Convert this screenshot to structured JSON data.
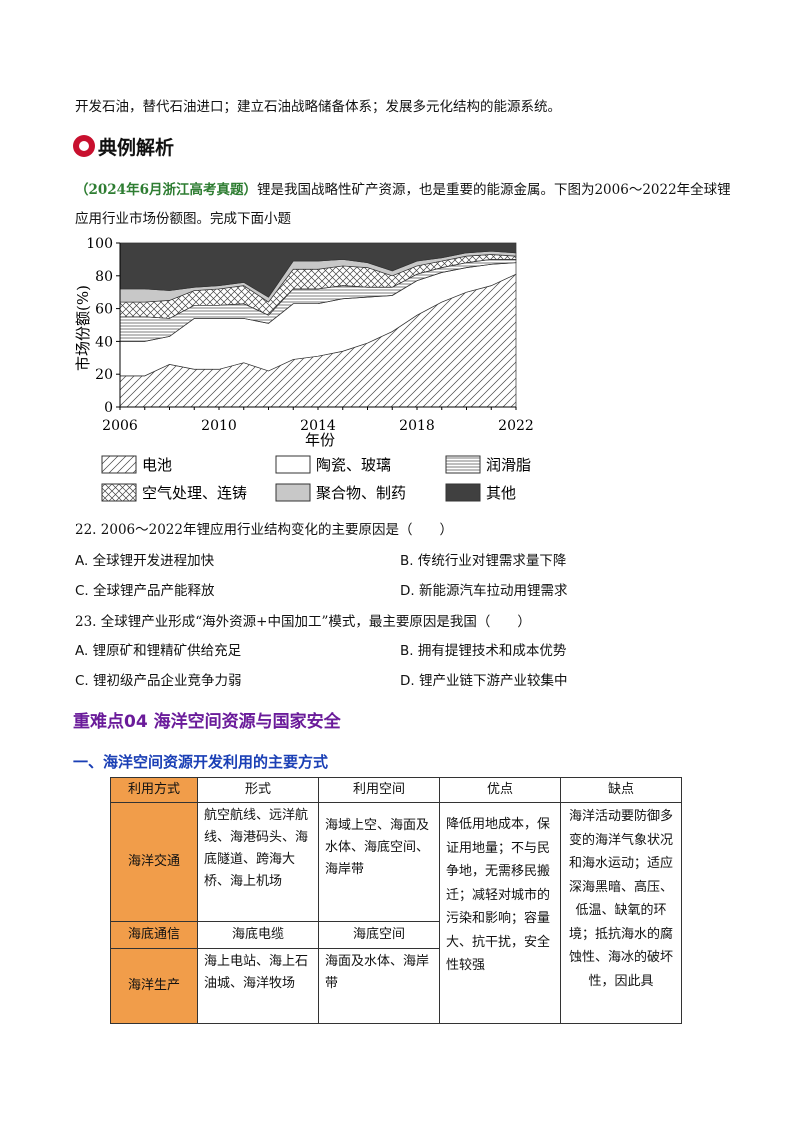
{
  "intro_text": "开发石油，替代石油进口；建立石油战略储备体系；发展多元化结构的能源系统。",
  "section_heading": "典例解析",
  "question": {
    "source": "（2024年6月浙江高考真题）",
    "text": "锂是我国战略性矿产资源，也是重要的能源金属。下图为2006～2022年全球锂应用行业市场份额图。完成下面小题"
  },
  "chart_data": {
    "type": "area",
    "title": "",
    "xlabel": "年份",
    "ylabel": "市场份额(%)",
    "x": [
      2006,
      2007,
      2008,
      2009,
      2010,
      2011,
      2012,
      2013,
      2014,
      2015,
      2016,
      2017,
      2018,
      2019,
      2020,
      2021,
      2022
    ],
    "xticks": [
      2006,
      2010,
      2014,
      2018,
      2022
    ],
    "yticks": [
      0,
      20,
      40,
      60,
      80,
      100
    ],
    "xlim": [
      2006,
      2022
    ],
    "ylim": [
      0,
      100
    ],
    "series": [
      {
        "name": "电池",
        "values": [
          19,
          19,
          26,
          23,
          23,
          27,
          22,
          29,
          31,
          34,
          39,
          46,
          56,
          64,
          70,
          74,
          81
        ]
      },
      {
        "name": "陶瓷、玻璃",
        "values": [
          21,
          21,
          17,
          31,
          31,
          27,
          29,
          34,
          32,
          32,
          28,
          22,
          21,
          18,
          15,
          13,
          7
        ]
      },
      {
        "name": "润滑脂",
        "values": [
          15,
          15,
          11,
          8,
          8,
          9,
          5,
          9,
          9,
          8,
          6,
          5,
          4,
          3,
          3,
          3,
          2
        ]
      },
      {
        "name": "空气处理、连铸",
        "values": [
          9,
          9,
          11,
          9,
          10,
          11,
          8,
          12,
          12,
          12,
          12,
          7,
          5,
          4,
          4,
          3,
          2
        ]
      },
      {
        "name": "聚合物、制药",
        "values": [
          8,
          8,
          6,
          2,
          2,
          2,
          3,
          5,
          5,
          4,
          3,
          3,
          3,
          2,
          2,
          2,
          2
        ]
      },
      {
        "name": "其他",
        "values": [
          28,
          28,
          29,
          27,
          26,
          24,
          33,
          11,
          11,
          10,
          12,
          17,
          11,
          9,
          6,
          5,
          6
        ]
      }
    ],
    "legend": "bottom"
  },
  "q22": {
    "stem": "22. 2006～2022年锂应用行业结构变化的主要原因是（　　）",
    "options": [
      {
        "label": "A.",
        "text": "全球锂开发进程加快"
      },
      {
        "label": "B.",
        "text": "传统行业对锂需求量下降"
      },
      {
        "label": "C.",
        "text": "全球锂产品产能释放"
      },
      {
        "label": "D.",
        "text": "新能源汽车拉动用锂需求"
      }
    ]
  },
  "q23": {
    "stem": "23. 全球锂产业形成“海外资源+中国加工”模式，最主要原因是我国（　　）",
    "options": [
      {
        "label": "A.",
        "text": "锂原矿和锂精矿供给充足"
      },
      {
        "label": "B.",
        "text": "拥有提锂技术和成本优势"
      },
      {
        "label": "C.",
        "text": "锂初级产品企业竞争力弱"
      },
      {
        "label": "D.",
        "text": "锂产业链下游产业较集中"
      }
    ]
  },
  "section_title": "重难点04  海洋空间资源与国家安全",
  "sub_title": "一、海洋空间资源开发利用的主要方式",
  "table": {
    "headers": [
      "利用方式",
      "形式",
      "利用空间",
      "优点",
      "缺点"
    ],
    "rows": [
      {
        "type": "海洋交通",
        "form": "航空航线、远洋航线、海港码头、海底隧道、跨海大桥、海上机场",
        "space": "海域上空、海面及水体、海底空间、海岸带"
      },
      {
        "type": "海底通信",
        "form": "海底电缆",
        "space": "海底空间"
      },
      {
        "type": "海洋生产",
        "form": "海上电站、海上石油城、海洋牧场",
        "space": "海面及水体、海岸带"
      }
    ],
    "pros": "降低用地成本，保证用地量；不与民争地，无需移民搬迁；减轻对城市的污染和影响；容量大、抗干扰，安全性较强",
    "cons": "海洋活动要防御多变的海洋气象状况和海水运动；适应深海黑暗、高压、低温、缺氧的环境；抵抗海水的腐蚀性、海冰的破坏性，因此具"
  }
}
